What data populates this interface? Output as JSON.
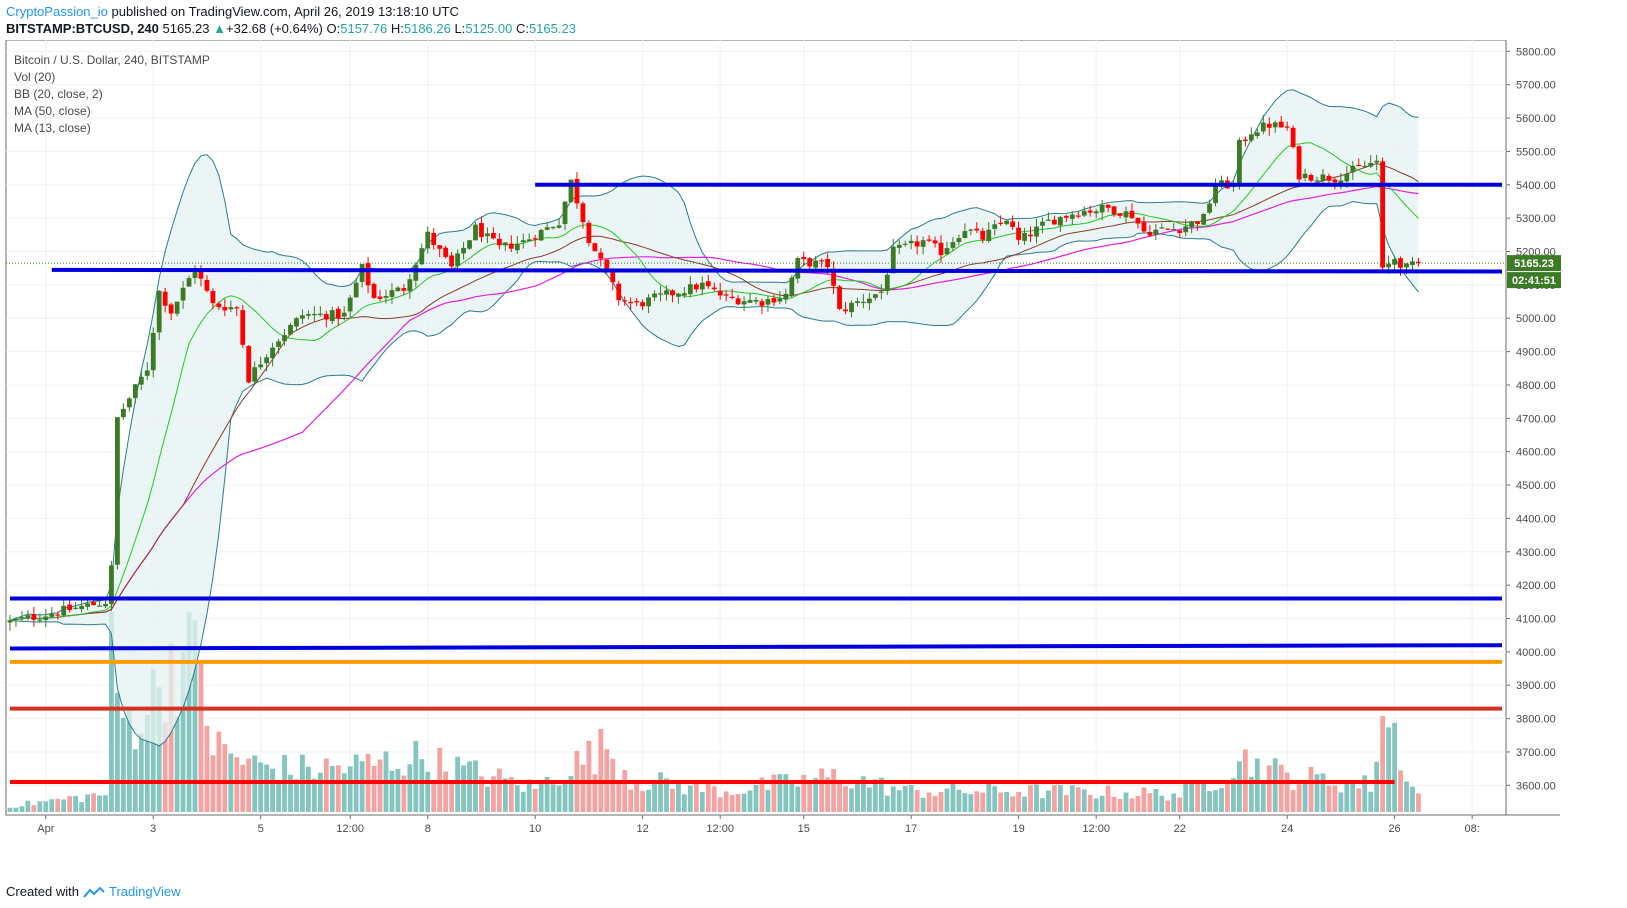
{
  "header": {
    "author": "CryptoPassion_io",
    "published": " published on TradingView.com, April 26, 2019 13:18:10 UTC",
    "symbol": "BITSTAMP:BTCUSD, 240",
    "last": "5165.23",
    "change": "+32.68 (+0.64%)",
    "open_label": "O:",
    "open": "5157.76",
    "high_label": "H:",
    "high": "5186.26",
    "low_label": "L:",
    "low": "5125.00",
    "close_label": "C:",
    "close": "5165.23"
  },
  "legend": {
    "title": "Bitcoin / U.S. Dollar, 240, BITSTAMP",
    "vol": "Vol (20)",
    "bb": "BB (20, close, 2)",
    "ma50": "MA (50, close)",
    "ma13": "MA (13, close)"
  },
  "footer": {
    "created": "Created with",
    "brand": "TradingView"
  },
  "price_tag": "5165.23",
  "countdown_tag": "02:41:51",
  "colors": {
    "up": "#3d7a26",
    "down": "#ff0000",
    "bb": "#2a7d8c",
    "bb_fill": "#e6f2f2",
    "ma13": "#23c823",
    "ma50": "#e120e1",
    "ma_brown": "#8b3a2a",
    "line_blue": "#0000dd",
    "line_orange": "#ff9a00",
    "line_red": "#d2321e",
    "line_red2": "#ff0000",
    "vol_up": "#84c5c0",
    "vol_down": "#f4a3a3"
  },
  "chart_data": {
    "type": "candlestick",
    "symbol": "BITSTAMP:BTCUSD",
    "timeframe": "240",
    "y_ticks": [
      5800,
      5700,
      5600,
      5500,
      5400,
      5300,
      5200,
      5100,
      5000,
      4900,
      4800,
      4700,
      4600,
      4500,
      4400,
      4300,
      4200,
      4100,
      4000,
      3900,
      3800,
      3700,
      3600
    ],
    "ylim": [
      3550,
      5830
    ],
    "x_labels": [
      {
        "i": 6,
        "label": "Apr"
      },
      {
        "i": 24,
        "label": "3"
      },
      {
        "i": 42,
        "label": "5"
      },
      {
        "i": 57,
        "label": "12:00"
      },
      {
        "i": 70,
        "label": "8"
      },
      {
        "i": 88,
        "label": "10"
      },
      {
        "i": 106,
        "label": "12"
      },
      {
        "i": 119,
        "label": "12:00"
      },
      {
        "i": 133,
        "label": "15"
      },
      {
        "i": 151,
        "label": "17"
      },
      {
        "i": 169,
        "label": "19"
      },
      {
        "i": 182,
        "label": "12:00"
      },
      {
        "i": 196,
        "label": "22"
      },
      {
        "i": 214,
        "label": "24"
      },
      {
        "i": 232,
        "label": "26"
      },
      {
        "i": 245,
        "label": "08:"
      }
    ],
    "horizontal_lines": [
      {
        "price": 5400,
        "from": 88,
        "to": 250,
        "color": "line_blue"
      },
      {
        "price": 5145,
        "from": 7,
        "to": 250,
        "color": "line_blue",
        "end_price": 5140
      },
      {
        "price": 4160,
        "from": 0,
        "to": 250,
        "color": "line_blue"
      },
      {
        "price": 4010,
        "from": 0,
        "to": 250,
        "color": "line_blue",
        "end_price": 4020
      },
      {
        "price": 3970,
        "from": 0,
        "to": 250,
        "color": "line_orange"
      },
      {
        "price": 3830,
        "from": 0,
        "to": 250,
        "color": "line_red"
      },
      {
        "price": 3610,
        "from": 0,
        "to": 232,
        "color": "line_red2"
      }
    ],
    "anchors": [
      {
        "i": 0,
        "p": 4090
      },
      {
        "i": 8,
        "p": 4120
      },
      {
        "i": 16,
        "p": 4150
      },
      {
        "i": 17,
        "p": 4250
      },
      {
        "i": 18,
        "p": 4700
      },
      {
        "i": 20,
        "p": 4760
      },
      {
        "i": 23,
        "p": 4850
      },
      {
        "i": 25,
        "p": 5080
      },
      {
        "i": 27,
        "p": 5020
      },
      {
        "i": 31,
        "p": 5150
      },
      {
        "i": 34,
        "p": 5040
      },
      {
        "i": 38,
        "p": 5030
      },
      {
        "i": 40,
        "p": 4820
      },
      {
        "i": 44,
        "p": 4920
      },
      {
        "i": 49,
        "p": 5010
      },
      {
        "i": 56,
        "p": 5010
      },
      {
        "i": 59,
        "p": 5150
      },
      {
        "i": 61,
        "p": 5060
      },
      {
        "i": 66,
        "p": 5090
      },
      {
        "i": 70,
        "p": 5250
      },
      {
        "i": 74,
        "p": 5150
      },
      {
        "i": 78,
        "p": 5270
      },
      {
        "i": 82,
        "p": 5210
      },
      {
        "i": 86,
        "p": 5230
      },
      {
        "i": 92,
        "p": 5290
      },
      {
        "i": 94,
        "p": 5410
      },
      {
        "i": 97,
        "p": 5240
      },
      {
        "i": 100,
        "p": 5130
      },
      {
        "i": 102,
        "p": 5060
      },
      {
        "i": 105,
        "p": 5040
      },
      {
        "i": 108,
        "p": 5060
      },
      {
        "i": 112,
        "p": 5080
      },
      {
        "i": 116,
        "p": 5100
      },
      {
        "i": 120,
        "p": 5060
      },
      {
        "i": 126,
        "p": 5050
      },
      {
        "i": 130,
        "p": 5070
      },
      {
        "i": 132,
        "p": 5170
      },
      {
        "i": 137,
        "p": 5160
      },
      {
        "i": 139,
        "p": 5020
      },
      {
        "i": 141,
        "p": 5040
      },
      {
        "i": 146,
        "p": 5080
      },
      {
        "i": 148,
        "p": 5200
      },
      {
        "i": 153,
        "p": 5230
      },
      {
        "i": 156,
        "p": 5200
      },
      {
        "i": 160,
        "p": 5270
      },
      {
        "i": 163,
        "p": 5240
      },
      {
        "i": 167,
        "p": 5300
      },
      {
        "i": 169,
        "p": 5230
      },
      {
        "i": 174,
        "p": 5290
      },
      {
        "i": 179,
        "p": 5320
      },
      {
        "i": 184,
        "p": 5330
      },
      {
        "i": 188,
        "p": 5310
      },
      {
        "i": 190,
        "p": 5260
      },
      {
        "i": 196,
        "p": 5270
      },
      {
        "i": 200,
        "p": 5300
      },
      {
        "i": 202,
        "p": 5400
      },
      {
        "i": 205,
        "p": 5400
      },
      {
        "i": 206,
        "p": 5520
      },
      {
        "i": 208,
        "p": 5560
      },
      {
        "i": 211,
        "p": 5580
      },
      {
        "i": 214,
        "p": 5570
      },
      {
        "i": 216,
        "p": 5430
      },
      {
        "i": 222,
        "p": 5420
      },
      {
        "i": 226,
        "p": 5450
      },
      {
        "i": 229,
        "p": 5470
      },
      {
        "i": 230,
        "p": 5140
      },
      {
        "i": 232,
        "p": 5180
      },
      {
        "i": 234,
        "p": 5150
      },
      {
        "i": 236,
        "p": 5165
      }
    ],
    "volume_anchors": [
      {
        "i": 0,
        "v": 20
      },
      {
        "i": 8,
        "v": 40
      },
      {
        "i": 16,
        "v": 60
      },
      {
        "i": 17,
        "v": 580
      },
      {
        "i": 18,
        "v": 360
      },
      {
        "i": 20,
        "v": 300
      },
      {
        "i": 24,
        "v": 380
      },
      {
        "i": 27,
        "v": 520
      },
      {
        "i": 32,
        "v": 500
      },
      {
        "i": 34,
        "v": 220
      },
      {
        "i": 40,
        "v": 160
      },
      {
        "i": 47,
        "v": 140
      },
      {
        "i": 57,
        "v": 150
      },
      {
        "i": 68,
        "v": 180
      },
      {
        "i": 88,
        "v": 80
      },
      {
        "i": 100,
        "v": 220
      },
      {
        "i": 104,
        "v": 110
      },
      {
        "i": 120,
        "v": 70
      },
      {
        "i": 139,
        "v": 120
      },
      {
        "i": 150,
        "v": 70
      },
      {
        "i": 170,
        "v": 70
      },
      {
        "i": 196,
        "v": 60
      },
      {
        "i": 203,
        "v": 120
      },
      {
        "i": 206,
        "v": 180
      },
      {
        "i": 214,
        "v": 120
      },
      {
        "i": 228,
        "v": 90
      },
      {
        "i": 230,
        "v": 320
      },
      {
        "i": 232,
        "v": 260
      },
      {
        "i": 235,
        "v": 80
      },
      {
        "i": 236,
        "v": 60
      }
    ],
    "series": [
      {
        "name": "BB (20, close, 2)"
      },
      {
        "name": "MA (50, close)"
      },
      {
        "name": "MA (13, close)"
      },
      {
        "name": "Vol (20)"
      }
    ]
  }
}
